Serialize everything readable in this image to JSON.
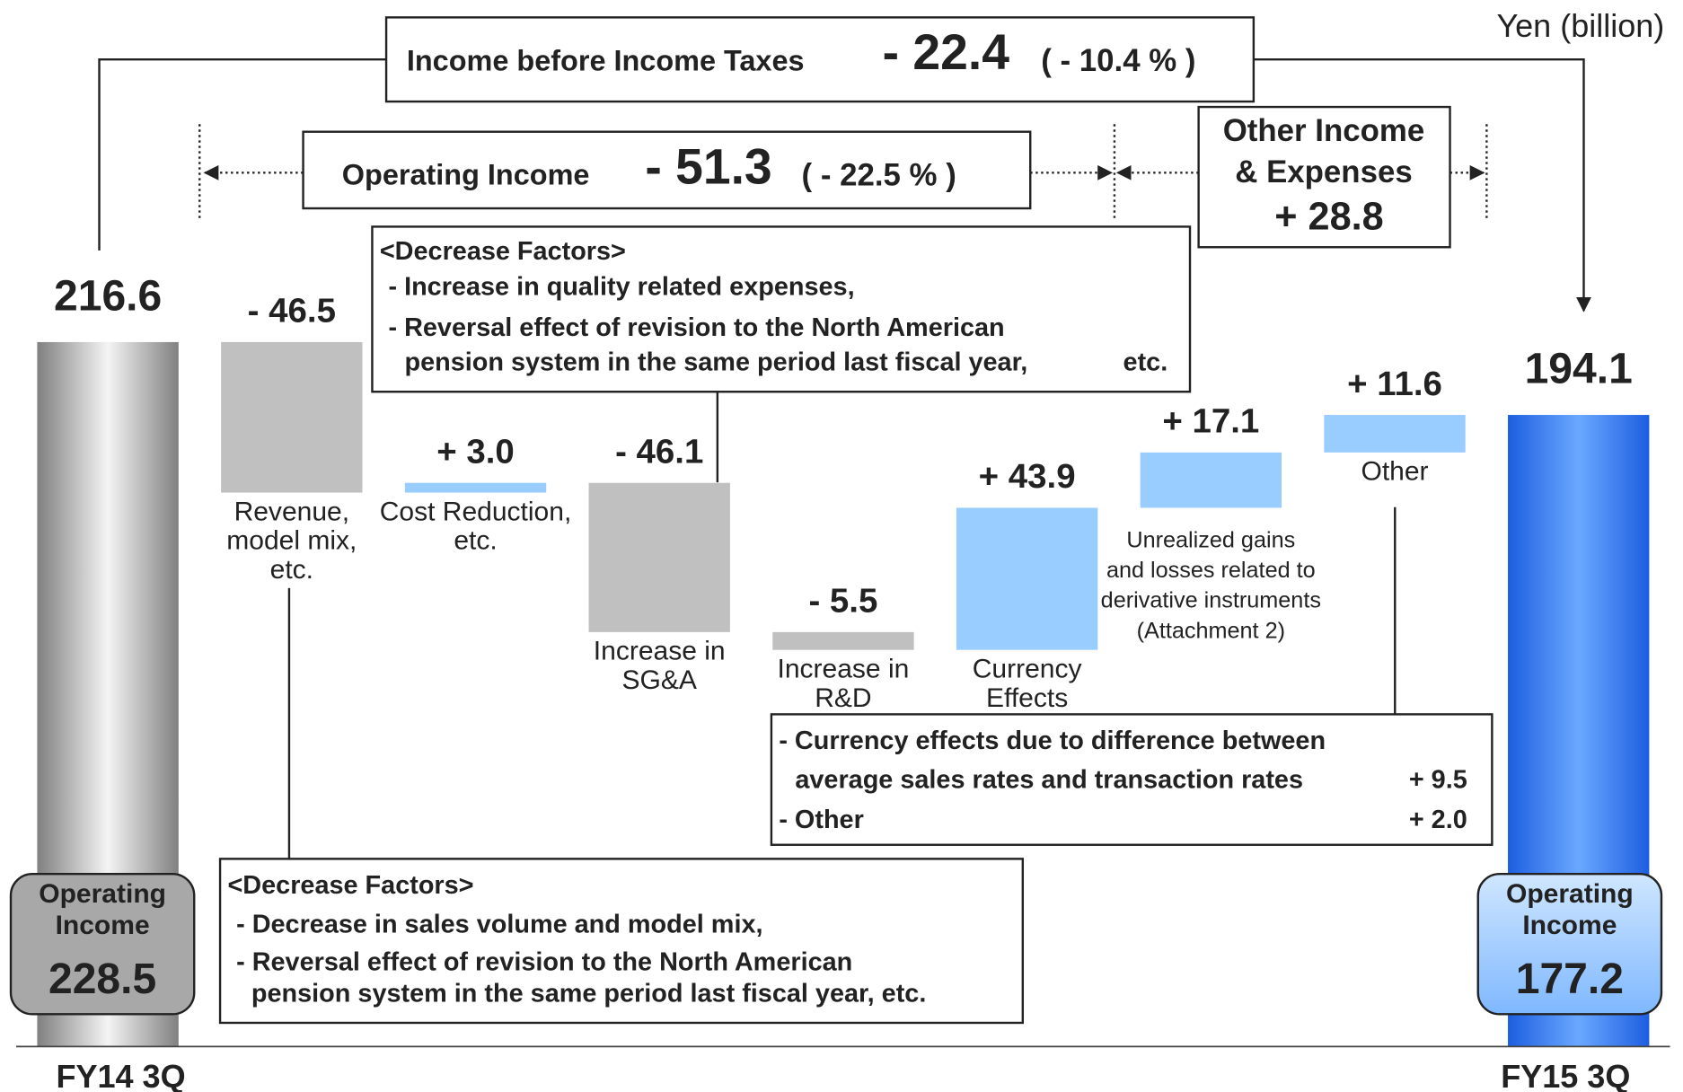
{
  "chart_data": {
    "type": "waterfall",
    "unit": "Yen (billion)",
    "start": {
      "label": "FY14 3Q",
      "value": 216.6,
      "badge_title": [
        "Operating",
        "Income"
      ],
      "badge_value": 228.5
    },
    "end": {
      "label": "FY15 3Q",
      "value": 194.1,
      "badge_title": [
        "Operating",
        "Income"
      ],
      "badge_value": 177.2
    },
    "categories": [
      [
        "Revenue,",
        "model mix,",
        "etc."
      ],
      [
        "Cost Reduction,",
        "etc."
      ],
      [
        "Increase in",
        "SG&A"
      ],
      [
        "Increase in",
        "R&D"
      ],
      [
        "Currency",
        "Effects"
      ],
      [
        "Unrealized gains",
        "and losses related to",
        "derivative instruments",
        "(Attachment 2)"
      ],
      [
        "Other"
      ]
    ],
    "values": [
      -46.5,
      3.0,
      -46.1,
      -5.5,
      43.9,
      17.1,
      11.6
    ],
    "value_labels": [
      "- 46.5",
      "+ 3.0",
      "- 46.1",
      "- 5.5",
      "+ 43.9",
      "+ 17.1",
      "+ 11.6"
    ],
    "colors": {
      "decrease": "#c0c0c0",
      "increase": "#99ccff",
      "start": "#a0a0a0",
      "end": "#3a7ef0"
    },
    "income_before_taxes": {
      "label": "Income before Income Taxes",
      "change": "- 22.4",
      "percent": "( - 10.4 % )"
    },
    "operating_income": {
      "label": "Operating Income",
      "change": "- 51.3",
      "percent": "( - 22.5 % )"
    },
    "other_income": {
      "label": [
        "Other Income",
        "& Expenses"
      ],
      "change": "+ 28.8"
    },
    "note_sga": {
      "title": "<Decrease Factors>",
      "lines": [
        "- Increase in quality related expenses,",
        "- Reversal effect of revision to the North American",
        "pension system in the same period last fiscal year,",
        "etc."
      ]
    },
    "note_revenue": {
      "title": "<Decrease Factors>",
      "lines": [
        "- Decrease  in sales volume and model mix,",
        "- Reversal effect of revision to the North American",
        "pension system in the same period last fiscal year, etc."
      ]
    },
    "note_other": {
      "rows": [
        {
          "lines": [
            "- Currency effects due to difference between",
            "average sales rates and transaction rates"
          ],
          "value": "+ 9.5"
        },
        {
          "lines": [
            "- Other"
          ],
          "value": "+ 2.0"
        }
      ]
    }
  }
}
